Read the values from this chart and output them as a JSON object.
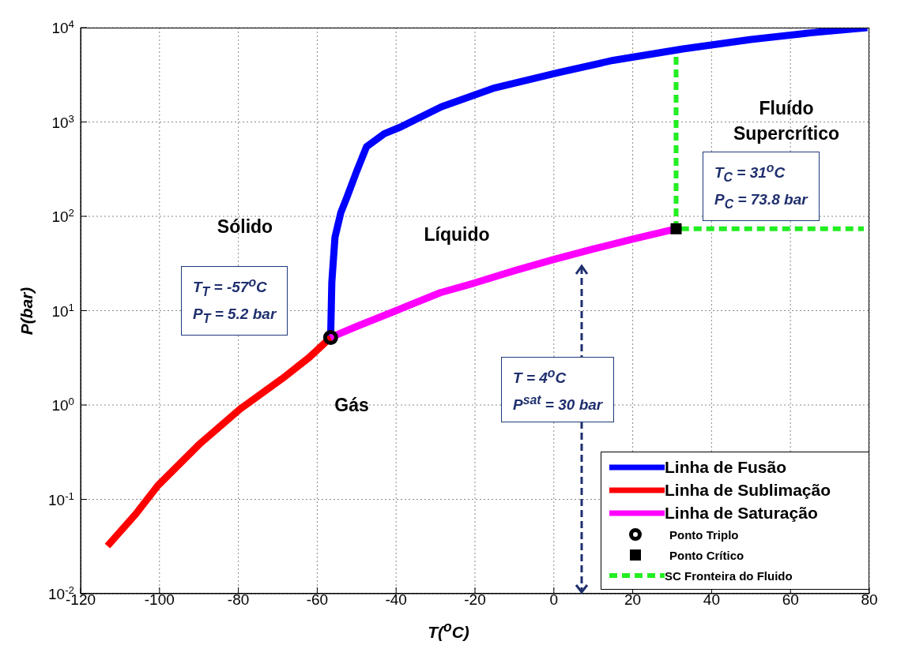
{
  "chart_data": {
    "type": "line",
    "xlabel": "T($^{o}$C)",
    "ylabel": "P(bar)",
    "log": "y",
    "grid": true,
    "legend": "bottom right",
    "xlim": [
      -120,
      80
    ],
    "xticks": [
      -120,
      -100,
      -80,
      -60,
      -40,
      -20,
      0,
      20,
      40,
      60,
      80
    ],
    "ylim": [
      0.01,
      10000
    ],
    "yticks": [
      {
        "value": 0.01,
        "label": "10$^{-2}$"
      },
      {
        "value": 0.1,
        "label": "10$^{-1}$"
      },
      {
        "value": 1,
        "label": "10$^{0}$"
      },
      {
        "value": 10,
        "label": "10$^{1}$"
      },
      {
        "value": 100,
        "label": "10$^{2}$"
      },
      {
        "value": 1000,
        "label": "10$^{3}$"
      },
      {
        "value": 10000,
        "label": "10$^{4}$"
      }
    ],
    "series": [
      {
        "name": "Linha de Fusão",
        "type": "line",
        "color": "#0000ff",
        "marker": "none",
        "line_style": "solid",
        "x": [
          -56.6,
          -56.3,
          -55.5,
          -54,
          -52.5,
          -50,
          -47.5,
          -43,
          -38.8,
          -28.5,
          -15,
          1,
          15,
          32.7,
          50,
          65,
          79.5
        ],
        "values": [
          5.2,
          20,
          60,
          110,
          158,
          300,
          546,
          750,
          887,
          1450,
          2300,
          3330,
          4500,
          5950,
          7500,
          8800,
          10000
        ]
      },
      {
        "name": "Linha de Sublimação",
        "type": "line",
        "color": "#ff0000",
        "marker": "none",
        "line_style": "solid",
        "x": [
          -113.2,
          -106,
          -100.4,
          -90,
          -79.5,
          -68.9,
          -62,
          -56.6
        ],
        "values": [
          0.032,
          0.07,
          0.14,
          0.38,
          0.91,
          1.9,
          3.2,
          5.2
        ]
      },
      {
        "name": "Linha de Saturação",
        "type": "line",
        "color": "#ff00ff",
        "marker": "none",
        "line_style": "solid",
        "x": [
          -56.6,
          -50,
          -40,
          -28.8,
          -20,
          -10,
          0,
          10,
          20,
          31
        ],
        "values": [
          5.2,
          6.8,
          10,
          15.5,
          19.7,
          26.5,
          34.9,
          45,
          57.3,
          73.8
        ]
      },
      {
        "name": "Ponto Triplo",
        "type": "scatter",
        "color": "#000000",
        "marker": "circle",
        "x": [
          -56.6
        ],
        "values": [
          5.2
        ]
      },
      {
        "name": "Ponto Crítico",
        "type": "scatter",
        "color": "#000000",
        "marker": "square",
        "x": [
          31
        ],
        "values": [
          73.8
        ]
      },
      {
        "name": "SC Fronteira do Fluido",
        "type": "line",
        "color": "#22ee22",
        "marker": "none",
        "line_style": "dashed",
        "x": [
          31,
          31,
          78.6
        ],
        "values": [
          4900,
          73.8,
          73.8
        ]
      }
    ],
    "annotations": [
      "Sólido",
      "Líquido",
      "Gás",
      "Fluído\nSupercrítico",
      "T$_{T}$ = -57$^{o}$C\nP$_{T}$ = 5.2 bar",
      "T$_{C}$ = 31$^{o}$C\nP$_{C}$ = 73.8 bar",
      "T = 4$^{o}$C\nP$^{sat}$ = 30 bar"
    ]
  }
}
